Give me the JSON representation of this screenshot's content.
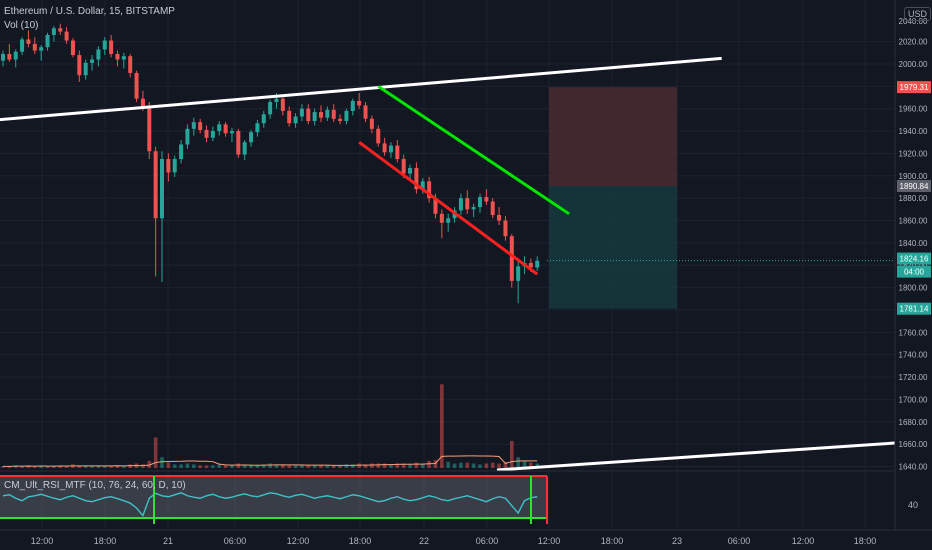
{
  "header": {
    "title": "Ethereum / U.S. Dollar, 15, BITSTAMP",
    "volume_label": "Vol (10)",
    "currency_button": "USD"
  },
  "rsi_panel": {
    "label": "CM_Ult_RSI_MTF (10, 76, 24, 60, D, 10)",
    "tick": "40"
  },
  "colors": {
    "background": "#131722",
    "up": "#26a69a",
    "down": "#ef5350",
    "grid": "#1e2230",
    "trendline_white": "#ffffff",
    "channel_green": "#00e600",
    "channel_red": "#ff2020",
    "stop_zone": "#4a2a30",
    "target_zone": "#163a3d",
    "rsi_line": "#3fc1c9",
    "rsi_band_top": "#ff3030",
    "rsi_band_bottom": "#2ee32e",
    "vol_ma": "#f7a07a"
  },
  "chart_data": {
    "type": "candlestick",
    "price_axis": {
      "ticks": [
        "2020.00",
        "2000.00",
        "1980.00",
        "1960.00",
        "1940.00",
        "1920.00",
        "1900.00",
        "1880.00",
        "1860.00",
        "1840.00",
        "1820.00",
        "1800.00",
        "1780.00",
        "1760.00",
        "1740.00",
        "1720.00",
        "1700.00",
        "1680.00",
        "1660.00",
        "1640.00"
      ],
      "top_partial_label": "2040.00",
      "ylim": [
        1636,
        2046
      ]
    },
    "price_labels": [
      {
        "value": "1979.31",
        "kind": "stop"
      },
      {
        "value": "1890.84",
        "kind": "entry"
      },
      {
        "value": "1824.16",
        "kind": "last"
      },
      {
        "value": "04:00",
        "kind": "countdown"
      },
      {
        "value": "1781.14",
        "kind": "target"
      }
    ],
    "time_axis": [
      "12:00",
      "18:00",
      "21",
      "06:00",
      "12:00",
      "18:00",
      "22",
      "06:00",
      "12:00",
      "18:00",
      "23",
      "06:00",
      "12:00",
      "18:00"
    ],
    "candles": [
      [
        2003,
        2012,
        1998,
        2009
      ],
      [
        2009,
        2018,
        2002,
        2004
      ],
      [
        2004,
        2013,
        1997,
        2011
      ],
      [
        2011,
        2024,
        2008,
        2022
      ],
      [
        2022,
        2030,
        2015,
        2018
      ],
      [
        2018,
        2024,
        2009,
        2012
      ],
      [
        2012,
        2017,
        2003,
        2015
      ],
      [
        2015,
        2028,
        2012,
        2026
      ],
      [
        2026,
        2034,
        2020,
        2032
      ],
      [
        2032,
        2036,
        2026,
        2029
      ],
      [
        2029,
        2033,
        2018,
        2021
      ],
      [
        2021,
        2023,
        2006,
        2008
      ],
      [
        2008,
        2012,
        1984,
        1990
      ],
      [
        1990,
        2004,
        1986,
        2001
      ],
      [
        2001,
        2008,
        1994,
        2004
      ],
      [
        2004,
        2016,
        1998,
        2013
      ],
      [
        2013,
        2024,
        2008,
        2021
      ],
      [
        2021,
        2026,
        2006,
        2009
      ],
      [
        2009,
        2012,
        1998,
        2004
      ],
      [
        2004,
        2010,
        1996,
        2007
      ],
      [
        2007,
        2009,
        1988,
        1992
      ],
      [
        1992,
        1994,
        1966,
        1969
      ],
      [
        1969,
        1976,
        1958,
        1962
      ],
      [
        1962,
        1966,
        1915,
        1922
      ],
      [
        1922,
        1926,
        1810,
        1862
      ],
      [
        1862,
        1922,
        1805,
        1915
      ],
      [
        1915,
        1920,
        1895,
        1903
      ],
      [
        1903,
        1918,
        1899,
        1915
      ],
      [
        1915,
        1932,
        1911,
        1928
      ],
      [
        1928,
        1946,
        1924,
        1942
      ],
      [
        1942,
        1952,
        1936,
        1948
      ],
      [
        1948,
        1951,
        1938,
        1941
      ],
      [
        1941,
        1945,
        1930,
        1934
      ],
      [
        1934,
        1944,
        1931,
        1940
      ],
      [
        1940,
        1949,
        1936,
        1946
      ],
      [
        1946,
        1948,
        1935,
        1938
      ],
      [
        1938,
        1943,
        1930,
        1940
      ],
      [
        1940,
        1942,
        1916,
        1919
      ],
      [
        1919,
        1932,
        1914,
        1930
      ],
      [
        1930,
        1941,
        1926,
        1939
      ],
      [
        1939,
        1950,
        1935,
        1947
      ],
      [
        1947,
        1958,
        1943,
        1955
      ],
      [
        1955,
        1968,
        1951,
        1966
      ],
      [
        1966,
        1974,
        1960,
        1969
      ],
      [
        1969,
        1972,
        1954,
        1958
      ],
      [
        1958,
        1962,
        1944,
        1947
      ],
      [
        1947,
        1956,
        1943,
        1953
      ],
      [
        1953,
        1964,
        1949,
        1960
      ],
      [
        1960,
        1964,
        1946,
        1949
      ],
      [
        1949,
        1960,
        1945,
        1957
      ],
      [
        1957,
        1963,
        1948,
        1952
      ],
      [
        1952,
        1962,
        1949,
        1959
      ],
      [
        1959,
        1964,
        1948,
        1951
      ],
      [
        1951,
        1955,
        1946,
        1949
      ],
      [
        1949,
        1960,
        1946,
        1958
      ],
      [
        1958,
        1969,
        1954,
        1967
      ],
      [
        1967,
        1974,
        1960,
        1963
      ],
      [
        1963,
        1966,
        1948,
        1951
      ],
      [
        1951,
        1954,
        1938,
        1942
      ],
      [
        1942,
        1945,
        1926,
        1929
      ],
      [
        1929,
        1934,
        1918,
        1921
      ],
      [
        1921,
        1930,
        1916,
        1927
      ],
      [
        1927,
        1932,
        1912,
        1915
      ],
      [
        1915,
        1919,
        1898,
        1902
      ],
      [
        1902,
        1910,
        1897,
        1907
      ],
      [
        1907,
        1912,
        1884,
        1888
      ],
      [
        1888,
        1898,
        1884,
        1895
      ],
      [
        1895,
        1899,
        1876,
        1880
      ],
      [
        1880,
        1884,
        1862,
        1866
      ],
      [
        1866,
        1870,
        1844,
        1858
      ],
      [
        1858,
        1866,
        1850,
        1862
      ],
      [
        1862,
        1872,
        1858,
        1869
      ],
      [
        1869,
        1884,
        1865,
        1880
      ],
      [
        1880,
        1887,
        1866,
        1870
      ],
      [
        1870,
        1875,
        1863,
        1872
      ],
      [
        1872,
        1884,
        1867,
        1881
      ],
      [
        1881,
        1888,
        1874,
        1877
      ],
      [
        1877,
        1880,
        1862,
        1865
      ],
      [
        1865,
        1872,
        1856,
        1860
      ],
      [
        1860,
        1864,
        1842,
        1846
      ],
      [
        1846,
        1848,
        1800,
        1806
      ],
      [
        1806,
        1824,
        1786,
        1819
      ],
      [
        1819,
        1828,
        1812,
        1822
      ],
      [
        1822,
        1826,
        1814,
        1818
      ],
      [
        1818,
        1828,
        1815,
        1824
      ]
    ],
    "volume": [
      2,
      2,
      3,
      2,
      3,
      2,
      3,
      2,
      2,
      3,
      2,
      4,
      3,
      3,
      2,
      3,
      3,
      2,
      3,
      2,
      4,
      5,
      4,
      8,
      34,
      12,
      6,
      4,
      4,
      5,
      4,
      3,
      3,
      3,
      4,
      3,
      3,
      5,
      4,
      3,
      3,
      4,
      5,
      4,
      4,
      3,
      3,
      4,
      3,
      3,
      3,
      3,
      3,
      3,
      4,
      4,
      5,
      4,
      5,
      5,
      5,
      4,
      5,
      5,
      4,
      6,
      5,
      8,
      9,
      93,
      7,
      5,
      6,
      6,
      5,
      4,
      5,
      6,
      5,
      7,
      30,
      12,
      8,
      6,
      5
    ],
    "drawings": [
      {
        "type": "trendline",
        "color": "white",
        "from": {
          "time_index": -1,
          "price": 1950
        },
        "to": {
          "time_index": 113,
          "price": 2005
        }
      },
      {
        "type": "trendline",
        "color": "green",
        "from": {
          "time_index": 59,
          "price": 1980
        },
        "to": {
          "time_index": 89,
          "price": 1866
        }
      },
      {
        "type": "trendline",
        "color": "red",
        "from": {
          "time_index": 56,
          "price": 1930
        },
        "to": {
          "time_index": 84,
          "price": 1812
        }
      },
      {
        "type": "short_position",
        "entry": 1890.84,
        "stop": 1979.31,
        "target": 1781.14
      }
    ],
    "rsi": [
      60,
      62,
      55,
      50,
      58,
      60,
      63,
      59,
      55,
      52,
      57,
      60,
      55,
      50,
      48,
      52,
      56,
      58,
      54,
      50,
      45,
      35,
      20,
      55,
      65,
      60,
      58,
      62,
      66,
      60,
      57,
      55,
      60,
      63,
      58,
      55,
      57,
      61,
      64,
      60,
      58,
      62,
      66,
      64,
      60,
      57,
      61,
      63,
      59,
      55,
      58,
      60,
      57,
      54,
      58,
      62,
      60,
      56,
      52,
      48,
      50,
      55,
      58,
      53,
      50,
      52,
      56,
      60,
      57,
      52,
      50,
      54,
      57,
      60,
      56,
      52,
      48,
      54,
      58,
      55,
      40,
      25,
      50,
      56,
      58
    ]
  }
}
